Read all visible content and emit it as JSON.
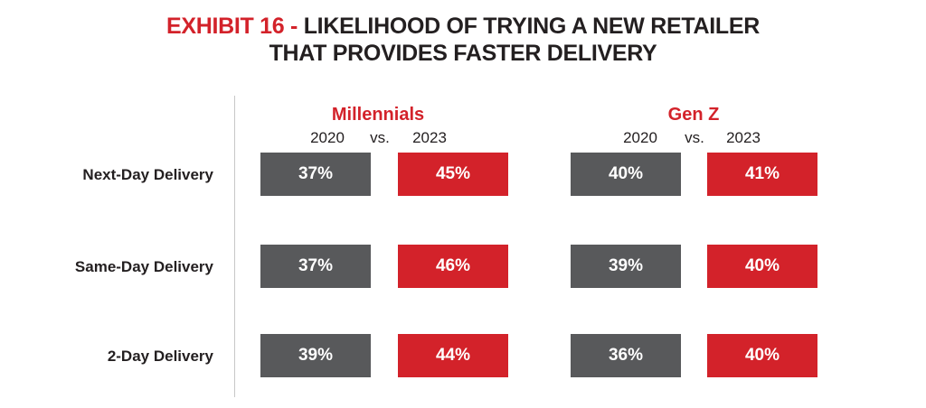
{
  "title": {
    "prefix": "EXHIBIT 16 -",
    "line1": "LIKELIHOOD OF TRYING A NEW RETAILER",
    "line2": "THAT PROVIDES FASTER DELIVERY"
  },
  "colors": {
    "accent_red": "#d3222a",
    "gray_2020": "#58595b",
    "text": "#231f20"
  },
  "chart_data": {
    "type": "table",
    "title": "EXHIBIT 16 - LIKELIHOOD OF TRYING A NEW RETAILER THAT PROVIDES FASTER DELIVERY",
    "rows": [
      "Next-Day Delivery",
      "Same-Day Delivery",
      "2-Day Delivery"
    ],
    "groups": [
      {
        "name": "Millennials",
        "year_a": "2020",
        "vs": "vs.",
        "year_b": "2023",
        "values_2020": [
          "37%",
          "37%",
          "39%"
        ],
        "values_2023": [
          "45%",
          "46%",
          "44%"
        ]
      },
      {
        "name": "Gen Z",
        "year_a": "2020",
        "vs": "vs.",
        "year_b": "2023",
        "values_2020": [
          "40%",
          "39%",
          "36%"
        ],
        "values_2023": [
          "41%",
          "40%",
          "40%"
        ]
      }
    ]
  }
}
